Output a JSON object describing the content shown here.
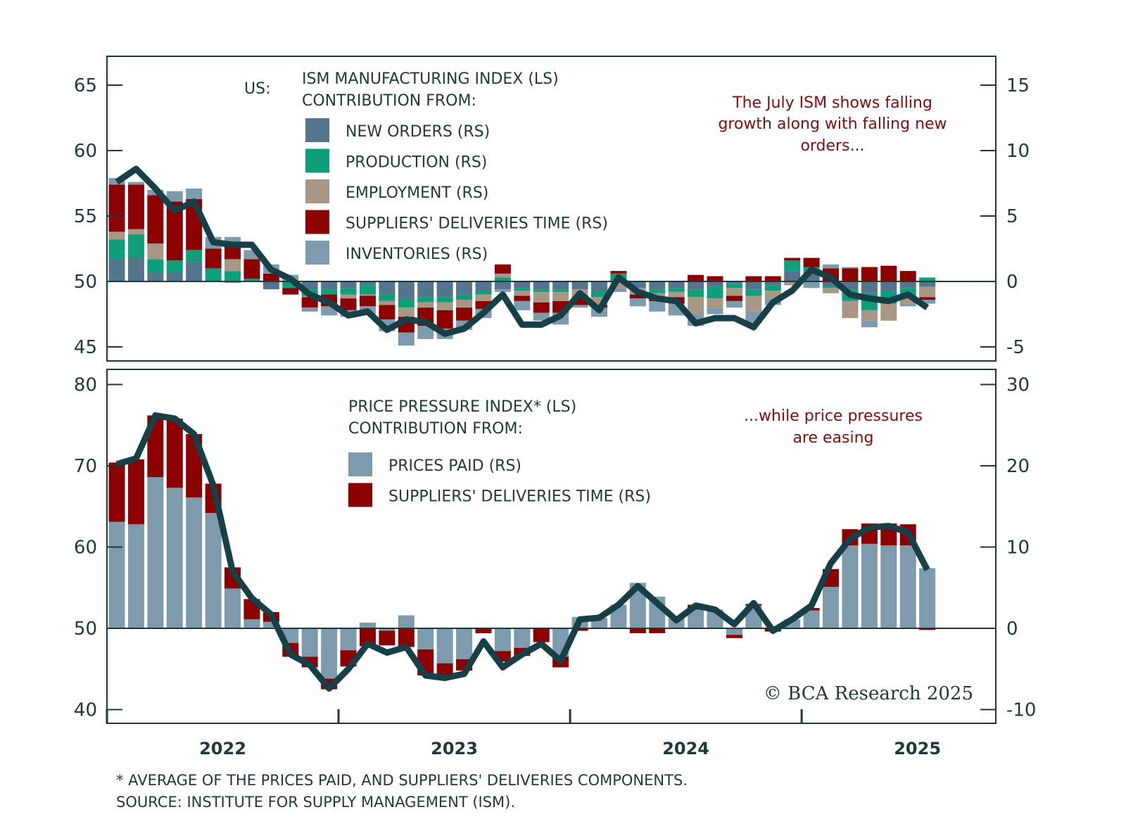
{
  "chart_data": [
    {
      "type": "bar",
      "stacked": true,
      "title": "US: ISM MANUFACTURING INDEX (LS) CONTRIBUTION FROM:",
      "prefix_label": "US:",
      "title_lines": [
        "ISM MANUFACTURING INDEX (LS)",
        "CONTRIBUTION FROM:"
      ],
      "annotation": [
        "The July ISM shows falling",
        "growth along with falling new",
        "orders..."
      ],
      "left_axis": {
        "ticks": [
          45,
          50,
          55,
          60,
          65
        ],
        "ylim": [
          44,
          67
        ]
      },
      "right_axis": {
        "ticks": [
          -5,
          0,
          5,
          10,
          15
        ],
        "ylim": [
          -6,
          17
        ]
      },
      "x": [
        "2022-01",
        "2022-02",
        "2022-03",
        "2022-04",
        "2022-05",
        "2022-06",
        "2022-07",
        "2022-08",
        "2022-09",
        "2022-10",
        "2022-11",
        "2022-12",
        "2023-01",
        "2023-02",
        "2023-03",
        "2023-04",
        "2023-05",
        "2023-06",
        "2023-07",
        "2023-08",
        "2023-09",
        "2023-10",
        "2023-11",
        "2023-12",
        "2024-01",
        "2024-02",
        "2024-03",
        "2024-04",
        "2024-05",
        "2024-06",
        "2024-07",
        "2024-08",
        "2024-09",
        "2024-10",
        "2024-11",
        "2024-12",
        "2025-01",
        "2025-02",
        "2025-03",
        "2025-04",
        "2025-05",
        "2025-06",
        "2025-07"
      ],
      "line": {
        "name": "ISM MANUFACTURING INDEX (LS)",
        "values": [
          57.6,
          58.6,
          57.1,
          55.4,
          56.1,
          53.0,
          52.8,
          52.8,
          50.9,
          50.2,
          49.0,
          48.4,
          47.4,
          47.7,
          46.3,
          47.1,
          46.9,
          46.0,
          46.4,
          47.6,
          49.0,
          46.7,
          46.7,
          47.4,
          49.1,
          47.8,
          50.3,
          49.2,
          48.7,
          48.5,
          46.8,
          47.2,
          47.2,
          46.5,
          48.4,
          49.3,
          50.9,
          50.3,
          49.0,
          48.7,
          48.5,
          49.0,
          48.0
        ]
      },
      "series": [
        {
          "name": "NEW ORDERS (RS)",
          "color": "#54758c",
          "values": [
            1.7,
            1.8,
            0.7,
            0.7,
            1.5,
            0.0,
            -0.1,
            0.0,
            -0.6,
            0.0,
            -0.6,
            -0.6,
            -0.5,
            -0.3,
            -1.0,
            -1.4,
            -1.2,
            -1.2,
            -1.0,
            -0.7,
            -0.6,
            -0.5,
            -0.6,
            -0.6,
            -0.6,
            -0.7,
            0.0,
            -0.5,
            -0.6,
            -0.5,
            -0.6,
            -0.4,
            -0.2,
            -0.6,
            -0.3,
            0.8,
            0.8,
            -0.4,
            -0.6,
            -0.9,
            -0.7,
            -0.5,
            -0.4
          ]
        },
        {
          "name": "PRODUCTION (RS)",
          "color": "#0f9e7a",
          "values": [
            1.5,
            1.8,
            1.0,
            0.9,
            0.9,
            1.0,
            0.8,
            0.2,
            0.0,
            -0.5,
            -0.5,
            -0.4,
            -0.5,
            -0.7,
            -0.5,
            -0.6,
            -0.4,
            -0.4,
            -0.4,
            -0.3,
            0.3,
            -0.2,
            -0.2,
            -0.2,
            0.0,
            -0.5,
            0.6,
            0.0,
            -0.3,
            -0.3,
            -0.6,
            -0.9,
            -0.3,
            -0.5,
            -0.4,
            0.8,
            0.3,
            -0.1,
            -0.9,
            -1.3,
            -1.0,
            -0.6,
            0.3
          ]
        },
        {
          "name": "EMPLOYMENT (RS)",
          "color": "#a89785",
          "values": [
            0.6,
            0.4,
            1.2,
            0.0,
            0.0,
            0.0,
            0.9,
            0.0,
            0.0,
            0.0,
            -0.1,
            0.0,
            -0.3,
            -0.1,
            -0.3,
            -0.7,
            -0.4,
            -0.6,
            -0.6,
            -0.5,
            0.3,
            -0.4,
            -0.8,
            -0.7,
            -0.6,
            -0.6,
            -0.5,
            -0.5,
            -0.4,
            -0.4,
            -1.3,
            -0.7,
            -0.6,
            -1.2,
            -0.6,
            -0.3,
            0.0,
            -0.4,
            -1.3,
            -0.8,
            -1.3,
            -0.6,
            -0.8
          ]
        },
        {
          "name": "SUPPLIERS' DELIVERIES TIME (RS)",
          "color": "#8b0000",
          "values": [
            3.6,
            3.4,
            3.7,
            4.5,
            3.9,
            1.5,
            1.1,
            1.5,
            0.6,
            -0.5,
            -0.8,
            -0.9,
            -0.9,
            -0.8,
            -1.1,
            -1.2,
            -1.4,
            -1.4,
            -1.0,
            -0.6,
            0.7,
            -0.4,
            -0.8,
            -0.9,
            -0.6,
            -0.2,
            0.2,
            -0.3,
            -0.2,
            -0.5,
            0.5,
            0.4,
            -0.4,
            0.4,
            0.4,
            0.2,
            0.7,
            1.0,
            1.0,
            1.1,
            1.2,
            0.8,
            -0.2
          ]
        },
        {
          "name": "INVENTORIES (RS)",
          "color": "#7e9bae",
          "values": [
            0.5,
            0.2,
            0.4,
            0.8,
            0.8,
            0.9,
            0.6,
            0.7,
            0.7,
            0.5,
            -0.3,
            -0.7,
            -0.5,
            -0.6,
            -0.9,
            -1.0,
            -1.0,
            -0.8,
            -0.7,
            -0.7,
            -0.2,
            -0.7,
            -0.6,
            -0.9,
            -0.2,
            -0.7,
            -0.3,
            -0.6,
            -0.8,
            -0.9,
            -0.9,
            -0.5,
            -0.5,
            -0.9,
            -0.5,
            0.0,
            -0.5,
            0.3,
            0.1,
            -0.5,
            0.0,
            -0.2,
            -0.3
          ]
        }
      ]
    },
    {
      "type": "bar",
      "stacked": true,
      "title": "PRICE PRESSURE INDEX* (LS) CONTRIBUTION FROM:",
      "title_lines": [
        "PRICE PRESSURE INDEX* (LS)",
        "CONTRIBUTION FROM:"
      ],
      "annotation": [
        "...while price pressures",
        "are easing"
      ],
      "left_axis": {
        "ticks": [
          40,
          50,
          60,
          70,
          80
        ],
        "ylim": [
          39,
          81
        ]
      },
      "right_axis": {
        "ticks": [
          -10,
          0,
          10,
          20,
          30
        ],
        "ylim": [
          -11,
          31
        ]
      },
      "x_ticks": [
        "2022",
        "2023",
        "2024",
        "2025"
      ],
      "line": {
        "name": "PRICE PRESSURE INDEX (LS)",
        "values": [
          70.2,
          70.9,
          76.2,
          75.8,
          73.9,
          67.6,
          57.0,
          53.7,
          51.7,
          46.8,
          45.5,
          42.6,
          45.0,
          48.1,
          47.0,
          47.7,
          44.2,
          43.9,
          44.4,
          48.4,
          45.2,
          46.8,
          48.1,
          46.0,
          51.1,
          51.3,
          52.9,
          55.2,
          53.1,
          51.0,
          52.8,
          52.3,
          50.5,
          53.1,
          49.7,
          51.1,
          52.8,
          58.0,
          61.0,
          62.4,
          62.6,
          61.8,
          57.2
        ]
      },
      "series": [
        {
          "name": "PRICES PAID (RS)",
          "color": "#7e9bae",
          "values": [
            13.1,
            12.8,
            18.6,
            17.3,
            16.1,
            14.2,
            4.9,
            1.1,
            0.8,
            -1.8,
            -3.5,
            -6.2,
            -2.7,
            0.7,
            -0.3,
            1.6,
            -2.6,
            -4.3,
            -3.8,
            0.0,
            -2.8,
            -2.4,
            0.0,
            -3.5,
            1.4,
            1.3,
            2.9,
            5.6,
            3.9,
            1.2,
            2.3,
            2.3,
            -0.8,
            2.8,
            0.0,
            1.1,
            2.2,
            5.1,
            10.2,
            10.4,
            10.2,
            10.2,
            7.4
          ]
        },
        {
          "name": "SUPPLIERS' DELIVERIES TIME (RS)",
          "color": "#8b0000",
          "values": [
            7.3,
            8.0,
            7.6,
            8.5,
            7.8,
            3.6,
            2.6,
            2.5,
            1.2,
            -1.7,
            -1.3,
            -1.3,
            -2.0,
            -2.2,
            -1.8,
            -2.3,
            -3.2,
            -1.5,
            -1.4,
            -0.6,
            -1.3,
            -1.0,
            -1.7,
            -1.3,
            -0.3,
            0.0,
            0.0,
            -0.6,
            -0.6,
            0.0,
            0.6,
            0.0,
            -0.4,
            0.2,
            -0.4,
            0.0,
            0.3,
            2.2,
            2.0,
            2.5,
            2.7,
            2.6,
            -0.2
          ]
        }
      ]
    }
  ],
  "x_axis": {
    "years": [
      "2022",
      "2023",
      "2024",
      "2025"
    ]
  },
  "legend_bottom": [
    "PRICES PAID (RS)",
    "SUPPLIERS' DELIVERIES TIME (RS)"
  ],
  "footnote": "* AVERAGE OF THE PRICES PAID, AND SUPPLIERS' DELIVERIES COMPONENTS.",
  "source": "SOURCE: INSTITUTE FOR SUPPLY MANAGEMENT (ISM).",
  "copyright": "© BCA Research 2025",
  "colors": {
    "line": "#173f47",
    "axis": "#1b3a40",
    "annotation": "#8b0a0a"
  }
}
